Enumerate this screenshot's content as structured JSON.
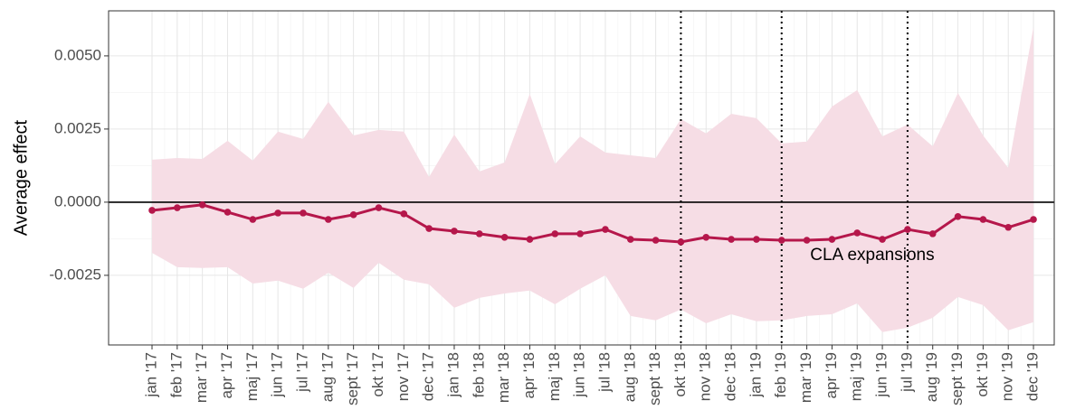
{
  "chart_data": {
    "type": "line",
    "ylabel": "Average effect",
    "categories": [
      "jan '17",
      "feb '17",
      "mar '17",
      "apr '17",
      "maj '17",
      "jun '17",
      "jul '17",
      "aug '17",
      "sept '17",
      "okt '17",
      "nov '17",
      "dec '17",
      "jan '18",
      "feb '18",
      "mar '18",
      "apr '18",
      "maj '18",
      "jun '18",
      "jul '18",
      "aug '18",
      "sept '18",
      "okt '18",
      "nov '18",
      "dec '18",
      "jan '19",
      "feb '19",
      "mar '19",
      "apr '19",
      "maj '19",
      "jun '19",
      "jul '19",
      "aug '19",
      "sept '19",
      "okt '19",
      "nov '19",
      "dec '19"
    ],
    "values": [
      -0.00028,
      -0.00019,
      -9e-05,
      -0.00034,
      -0.00059,
      -0.00037,
      -0.00037,
      -0.00059,
      -0.00043,
      -0.00019,
      -0.0004,
      -0.0009,
      -0.00099,
      -0.00108,
      -0.0012,
      -0.00127,
      -0.00108,
      -0.00108,
      -0.00093,
      -0.00127,
      -0.0013,
      -0.00136,
      -0.0012,
      -0.00127,
      -0.00127,
      -0.0013,
      -0.0013,
      -0.00127,
      -0.00105,
      -0.00127,
      -0.00093,
      -0.00108,
      -0.00049,
      -0.00059,
      -0.00086,
      -0.00059
    ],
    "upper": [
      0.00145,
      0.00151,
      0.00148,
      0.0021,
      0.00142,
      0.00241,
      0.00216,
      0.00343,
      0.00228,
      0.00247,
      0.00241,
      0.00086,
      0.00231,
      0.00105,
      0.00136,
      0.0037,
      0.0013,
      0.00225,
      0.0017,
      0.0016,
      0.00151,
      0.00284,
      0.00235,
      0.00302,
      0.00287,
      0.00201,
      0.00207,
      0.00327,
      0.00383,
      0.00225,
      0.00265,
      0.00191,
      0.00373,
      0.00228,
      0.00117,
      0.00599
    ],
    "lower": [
      -0.00173,
      -0.00222,
      -0.00225,
      -0.00222,
      -0.00278,
      -0.00268,
      -0.00296,
      -0.00241,
      -0.00293,
      -0.00207,
      -0.00265,
      -0.00281,
      -0.00361,
      -0.00327,
      -0.00312,
      -0.00302,
      -0.00349,
      -0.00296,
      -0.0025,
      -0.00389,
      -0.00404,
      -0.00367,
      -0.00414,
      -0.00383,
      -0.00407,
      -0.00404,
      -0.00389,
      -0.00383,
      -0.00346,
      -0.00444,
      -0.00429,
      -0.00395,
      -0.00324,
      -0.00352,
      -0.00438,
      -0.0041
    ],
    "color": "#b5174b",
    "band_color": "#f6dde5",
    "ylim": [
      -0.00488,
      0.00654
    ],
    "yticks": [
      {
        "value": -0.0025,
        "label": "-0.0025"
      },
      {
        "value": 0,
        "label": "0.0000"
      },
      {
        "value": 0.0025,
        "label": "0.0025"
      },
      {
        "value": 0.005,
        "label": "0.0050"
      }
    ],
    "hline": 0,
    "vlines": [
      21,
      25,
      30
    ],
    "annotation": {
      "text": "CLA expansions",
      "x": 28.6,
      "y": -0.00182
    },
    "grid": true
  }
}
